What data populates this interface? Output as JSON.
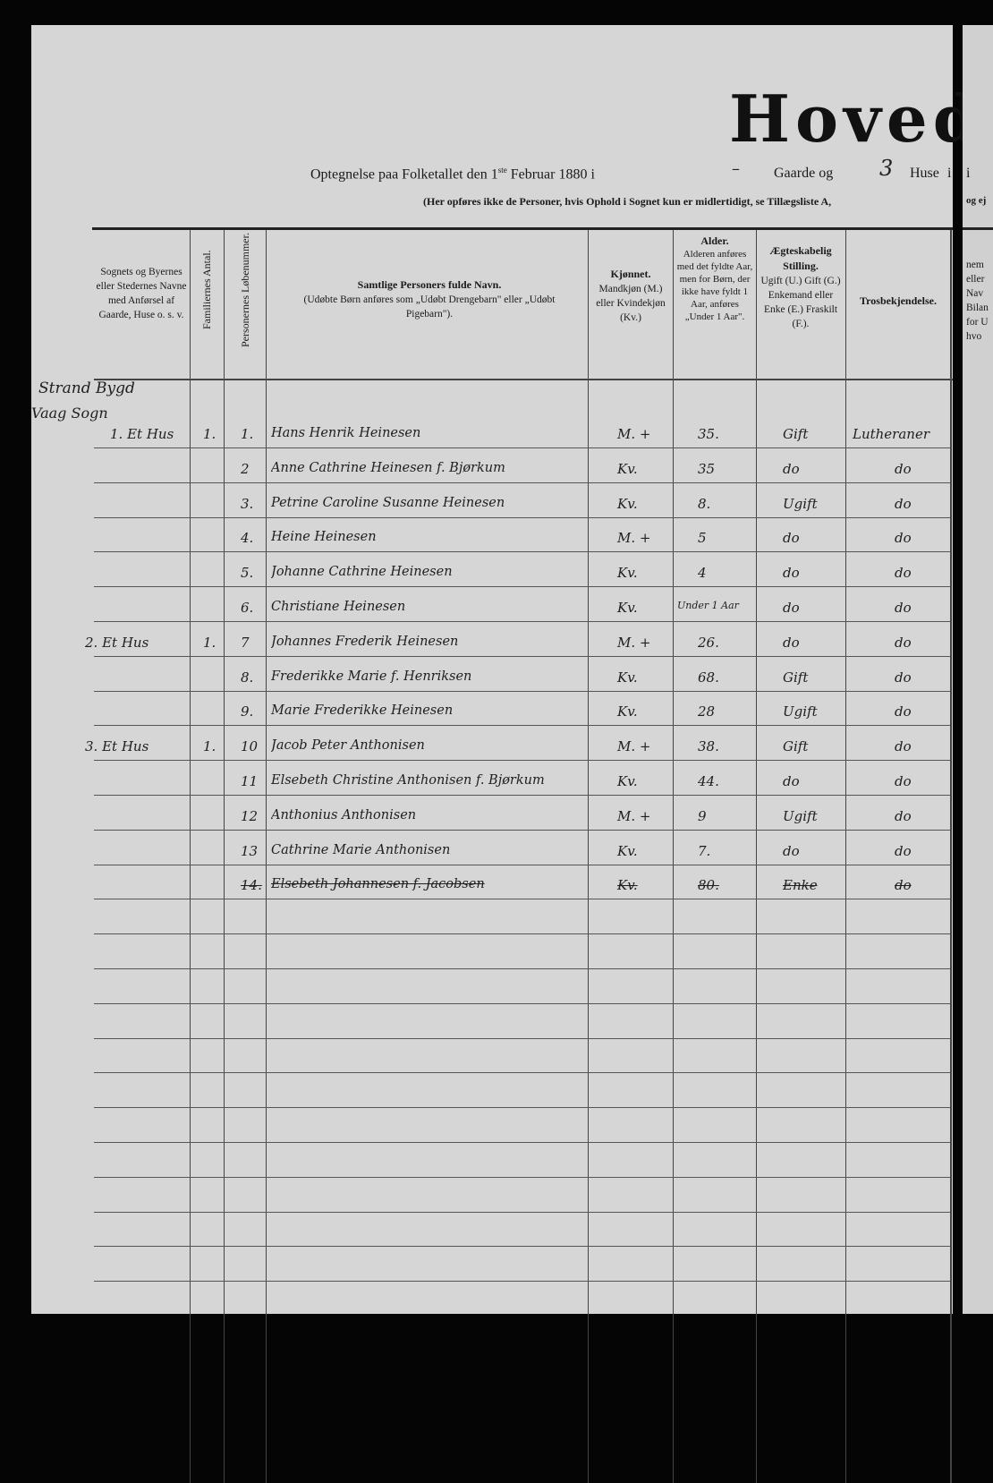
{
  "header": {
    "title": "Hovedl",
    "line1_prefix": "Optegnelse paa Folketallet den 1",
    "line1_sup": "ste",
    "line1_mid": " Februar 1880 i",
    "gaarde_value": "–",
    "gaarde_label": "Gaarde og",
    "huse_value": "3",
    "huse_label": "Huse",
    "line1_end": "i",
    "line2": "(Her opføres ikke de Personer, hvis Ophold i Sognet kun er midlertidigt, se Tillægsliste A,"
  },
  "columns": {
    "place": "Sognets og Byernes eller Stedernes Navne med Anførsel af Gaarde, Huse o. s. v.",
    "families": "Familiernes Antal.",
    "person_no": "Personernes Løbenummer.",
    "name_title": "Samtlige Personers fulde Navn.",
    "name_note": "(Udøbte Børn anføres som „Udøbt Drengebarn\" eller „Udøbt Pigebarn\").",
    "sex_title": "Kjønnet.",
    "sex_note": "Mandkjøn (M.) eller Kvindekjøn (Kv.)",
    "age_title": "Alder.",
    "age_note": "Alderen anføres med det fyldte Aar, men for Børn, der ikke have fyldt 1 Aar, anføres „Under 1 Aar\".",
    "marital_title": "Ægteskabelig Stilling.",
    "marital_note": "Ugift (U.) Gift (G.) Enkemand eller Enke (E.) Fraskilt (F.).",
    "religion_title": "Trosbekjendelse."
  },
  "next_page": {
    "line1": "i",
    "line2": "og ej",
    "header": [
      "nem",
      "eller",
      "Nav",
      "Bilan",
      "for U",
      "hvo"
    ]
  },
  "places": [
    {
      "row": 0,
      "text": "1. Et Hus",
      "pre1": "Strand Bygd",
      "pre2": "Vaag Sogn",
      "families": "1."
    },
    {
      "row": 6,
      "text": "2. Et Hus",
      "families": "1."
    },
    {
      "row": 9,
      "text": "3. Et Hus",
      "families": "1."
    }
  ],
  "persons": [
    {
      "no": "1.",
      "name": "Hans Henrik Heinesen",
      "sex": "M. +",
      "age": "35.",
      "marital": "Gift",
      "religion": "Lutheraner"
    },
    {
      "no": "2",
      "name": "Anne Cathrine Heinesen f. Bjørkum",
      "sex": "Kv.",
      "age": "35",
      "marital": "do",
      "religion": "do"
    },
    {
      "no": "3.",
      "name": "Petrine Caroline Susanne Heinesen",
      "sex": "Kv.",
      "age": "8.",
      "marital": "Ugift",
      "religion": "do"
    },
    {
      "no": "4.",
      "name": "Heine Heinesen",
      "sex": "M. +",
      "age": "5",
      "marital": "do",
      "religion": "do"
    },
    {
      "no": "5.",
      "name": "Johanne Cathrine Heinesen",
      "sex": "Kv.",
      "age": "4",
      "marital": "do",
      "religion": "do"
    },
    {
      "no": "6.",
      "name": "Christiane Heinesen",
      "sex": "Kv.",
      "age": "Under 1 Aar",
      "marital": "do",
      "religion": "do"
    },
    {
      "no": "7",
      "name": "Johannes Frederik Heinesen",
      "sex": "M. +",
      "age": "26.",
      "marital": "do",
      "religion": "do"
    },
    {
      "no": "8.",
      "name": "Frederikke Marie f. Henriksen",
      "sex": "Kv.",
      "age": "68.",
      "marital": "Gift",
      "religion": "do"
    },
    {
      "no": "9.",
      "name": "Marie Frederikke Heinesen",
      "sex": "Kv.",
      "age": "28",
      "marital": "Ugift",
      "religion": "do"
    },
    {
      "no": "10",
      "name": "Jacob Peter Anthonisen",
      "sex": "M. +",
      "age": "38.",
      "marital": "Gift",
      "religion": "do"
    },
    {
      "no": "11",
      "name": "Elsebeth Christine Anthonisen f. Bjørkum",
      "sex": "Kv.",
      "age": "44.",
      "marital": "do",
      "religion": "do"
    },
    {
      "no": "12",
      "name": "Anthonius Anthonisen",
      "sex": "M. +",
      "age": "9",
      "marital": "Ugift",
      "religion": "do"
    },
    {
      "no": "13",
      "name": "Cathrine Marie Anthonisen",
      "sex": "Kv.",
      "age": "7.",
      "marital": "do",
      "religion": "do"
    },
    {
      "no": "14.",
      "name": "Elsebeth Johannesen f. Jacobsen",
      "sex": "Kv.",
      "age": "80.",
      "marital": "Enke",
      "religion": "do",
      "struck": true
    }
  ]
}
